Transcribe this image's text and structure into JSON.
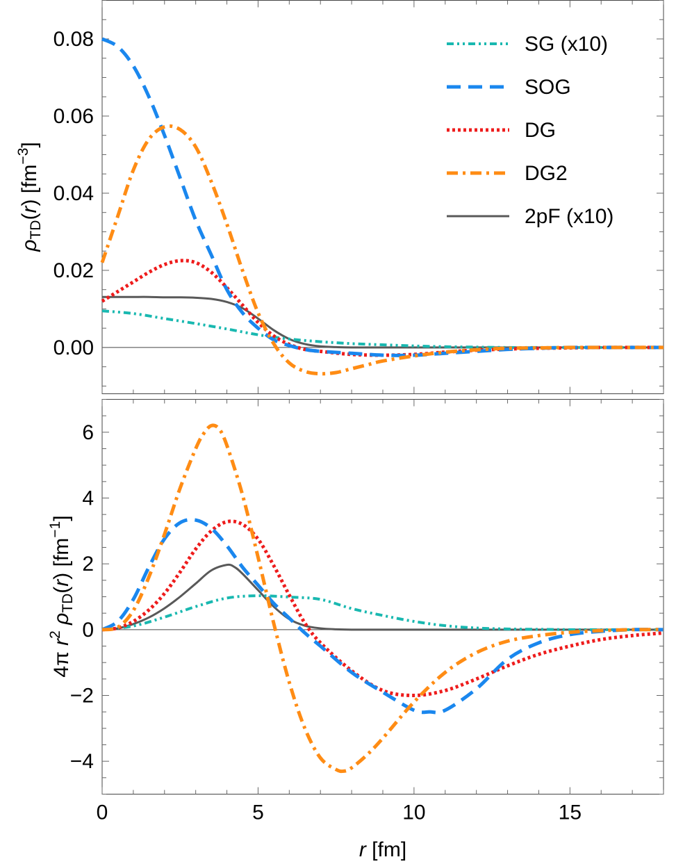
{
  "chart_data": [
    {
      "type": "line",
      "panel": "top",
      "ylabel_parts": {
        "rho": "ρ",
        "sub": "TD",
        "mid": "(",
        "r": "r",
        "close": ") [fm",
        "exp": "−3",
        "end": "]"
      },
      "xlim": [
        0,
        18
      ],
      "ylim": [
        -0.012,
        0.09
      ],
      "yticks": [
        0.0,
        0.02,
        0.04,
        0.06,
        0.08
      ],
      "ytick_labels": [
        "0.00",
        "0.02",
        "0.04",
        "0.06",
        "0.08"
      ],
      "xticks": [
        0,
        5,
        10,
        15
      ],
      "legend_position": "top-right",
      "series": [
        {
          "key": "SG",
          "name": "SG (x10)",
          "color": "#19b8b0",
          "x": [
            0,
            1,
            2,
            3,
            4,
            5,
            6,
            7,
            8,
            9,
            10,
            11,
            12,
            13,
            14,
            15,
            16,
            17,
            18
          ],
          "y": [
            0.0095,
            0.0088,
            0.0075,
            0.0062,
            0.0048,
            0.0033,
            0.0022,
            0.0015,
            0.001,
            0.0007,
            0.0004,
            0.0002,
            0.0001,
            0.0,
            0.0,
            0.0,
            0.0,
            0.0,
            0.0
          ]
        },
        {
          "key": "SOG",
          "name": "SOG",
          "color": "#1a87ee",
          "x": [
            0,
            0.5,
            1,
            1.5,
            2,
            2.5,
            3,
            3.5,
            4,
            4.5,
            5,
            5.5,
            6,
            6.5,
            7,
            8,
            9,
            10,
            11,
            12,
            13,
            14,
            15,
            16,
            17,
            18
          ],
          "y": [
            0.08,
            0.078,
            0.073,
            0.065,
            0.055,
            0.044,
            0.033,
            0.024,
            0.015,
            0.009,
            0.005,
            0.002,
            0.0005,
            -0.0005,
            -0.001,
            -0.0015,
            -0.002,
            -0.002,
            -0.0015,
            -0.001,
            -0.0005,
            -0.0002,
            0.0,
            0.0,
            0.0,
            0.0
          ]
        },
        {
          "key": "DG",
          "name": "DG",
          "color": "#ee1c1c",
          "x": [
            0,
            0.5,
            1,
            1.5,
            2,
            2.5,
            3,
            3.5,
            4,
            4.5,
            5,
            5.5,
            6,
            6.5,
            7,
            8,
            9,
            10,
            11,
            12,
            13,
            14,
            15,
            16,
            17,
            18
          ],
          "y": [
            0.012,
            0.0145,
            0.017,
            0.0195,
            0.0215,
            0.0225,
            0.022,
            0.0195,
            0.0155,
            0.011,
            0.0065,
            0.003,
            0.0008,
            -0.0005,
            -0.001,
            -0.0018,
            -0.002,
            -0.0018,
            -0.0012,
            -0.0007,
            -0.0004,
            -0.0002,
            -0.0001,
            0.0,
            0.0,
            0.0
          ]
        },
        {
          "key": "DG2",
          "name": "DG2",
          "color": "#ff8c14",
          "x": [
            0,
            0.5,
            1,
            1.5,
            2,
            2.5,
            3,
            3.5,
            4,
            4.5,
            5,
            5.5,
            6,
            6.5,
            7,
            7.5,
            8,
            8.5,
            9,
            10,
            11,
            12,
            13,
            14,
            15,
            16,
            17,
            18
          ],
          "y": [
            0.022,
            0.034,
            0.046,
            0.054,
            0.0572,
            0.0565,
            0.052,
            0.043,
            0.032,
            0.02,
            0.009,
            0.001,
            -0.004,
            -0.0062,
            -0.0068,
            -0.0065,
            -0.0055,
            -0.0045,
            -0.0035,
            -0.0022,
            -0.0012,
            -0.0006,
            -0.0002,
            -0.0001,
            0.0,
            0.0,
            0.0,
            0.0
          ]
        },
        {
          "key": "2pF",
          "name": "2pF (x10)",
          "color": "#595959",
          "x": [
            0,
            0.5,
            1,
            1.5,
            2,
            2.5,
            3,
            3.5,
            4,
            4.5,
            5,
            5.5,
            6,
            6.5,
            7,
            7.5,
            8,
            9,
            10,
            12,
            14,
            16,
            18
          ],
          "y": [
            0.0131,
            0.0131,
            0.0131,
            0.0131,
            0.013,
            0.013,
            0.0129,
            0.0126,
            0.0118,
            0.0102,
            0.0075,
            0.0045,
            0.0022,
            0.0009,
            0.0003,
            0.0001,
            0.0,
            0.0,
            0.0,
            0.0,
            0.0,
            0.0,
            0.0
          ]
        }
      ]
    },
    {
      "type": "line",
      "panel": "bottom",
      "ylabel_parts": {
        "pre": "4π ",
        "r": "r",
        "exp2": "2",
        "rho": " ρ",
        "sub": "TD",
        "mid": "(",
        "r2": "r",
        "close": ") [fm",
        "exp": "−1",
        "end": "]"
      },
      "xlabel_parts": {
        "r": "r",
        "unit": " [fm]"
      },
      "xlim": [
        0,
        18
      ],
      "ylim": [
        -5,
        7
      ],
      "yticks": [
        -4,
        -2,
        0,
        2,
        4,
        6
      ],
      "ytick_labels": [
        "−4",
        "−2",
        "0",
        "2",
        "4",
        "6"
      ],
      "xticks": [
        0,
        5,
        10,
        15
      ],
      "xtick_labels": [
        "0",
        "5",
        "10",
        "15"
      ],
      "series": [
        {
          "key": "SG",
          "name": "SG (x10)",
          "color": "#19b8b0",
          "x": [
            0,
            1,
            2,
            3,
            4,
            5,
            6,
            7,
            8,
            9,
            10,
            11,
            12,
            13,
            14,
            15,
            16,
            17,
            18
          ],
          "y": [
            0,
            0.11,
            0.38,
            0.7,
            0.96,
            1.03,
            0.99,
            0.92,
            0.64,
            0.43,
            0.25,
            0.12,
            0.05,
            0.02,
            0.01,
            0.0,
            0.0,
            0.0,
            0.0
          ]
        },
        {
          "key": "SOG",
          "name": "SOG",
          "color": "#1a87ee",
          "x": [
            0,
            0.5,
            1,
            1.5,
            2,
            2.5,
            3,
            3.5,
            4,
            4.5,
            5,
            5.5,
            6,
            6.5,
            7,
            8,
            9,
            10,
            10.5,
            11,
            12,
            13,
            14,
            15,
            16,
            17,
            18
          ],
          "y": [
            0,
            0.25,
            0.92,
            1.9,
            2.76,
            3.25,
            3.33,
            3.08,
            2.55,
            1.9,
            1.35,
            0.8,
            0.35,
            -0.1,
            -0.5,
            -1.3,
            -1.9,
            -2.45,
            -2.5,
            -2.45,
            -1.8,
            -0.9,
            -0.4,
            -0.15,
            -0.05,
            0.0,
            0.0
          ]
        },
        {
          "key": "DG",
          "name": "DG",
          "color": "#ee1c1c",
          "x": [
            0,
            0.5,
            1,
            1.5,
            2,
            2.5,
            3,
            3.5,
            4,
            4.5,
            5,
            5.5,
            6,
            6.5,
            7,
            8,
            9,
            10,
            11,
            12,
            13,
            14,
            15,
            16,
            17,
            18
          ],
          "y": [
            0,
            0.05,
            0.25,
            0.6,
            1.1,
            1.75,
            2.45,
            3.0,
            3.28,
            3.2,
            2.75,
            1.95,
            1.05,
            0.2,
            -0.4,
            -1.25,
            -1.85,
            -2.0,
            -1.85,
            -1.5,
            -1.1,
            -0.75,
            -0.5,
            -0.3,
            -0.18,
            -0.1
          ]
        },
        {
          "key": "DG2",
          "name": "DG2",
          "color": "#ff8c14",
          "x": [
            0,
            0.5,
            1,
            1.5,
            2,
            2.5,
            3,
            3.25,
            3.5,
            3.75,
            4,
            4.5,
            5,
            5.5,
            6,
            6.5,
            7,
            7.5,
            7.75,
            8,
            8.5,
            9,
            10,
            11,
            12,
            13,
            14,
            15,
            16,
            17,
            18
          ],
          "y": [
            0,
            0.07,
            0.58,
            1.6,
            2.9,
            4.3,
            5.5,
            5.95,
            6.2,
            6.1,
            5.6,
            4.1,
            2.2,
            0.2,
            -1.6,
            -3.0,
            -3.9,
            -4.25,
            -4.3,
            -4.2,
            -3.8,
            -3.3,
            -2.2,
            -1.3,
            -0.7,
            -0.35,
            -0.18,
            -0.08,
            -0.03,
            0.0,
            0.0
          ]
        },
        {
          "key": "2pF",
          "name": "2pF (x10)",
          "color": "#595959",
          "x": [
            0,
            0.5,
            1,
            1.5,
            2,
            2.5,
            3,
            3.5,
            4,
            4.25,
            4.5,
            5,
            5.5,
            6,
            6.5,
            7,
            7.5,
            8,
            9,
            10,
            12,
            14,
            16,
            18
          ],
          "y": [
            0,
            0.04,
            0.17,
            0.37,
            0.65,
            1.0,
            1.4,
            1.8,
            1.97,
            1.9,
            1.7,
            1.2,
            0.7,
            0.32,
            0.12,
            0.04,
            0.01,
            0.0,
            0.0,
            0.0,
            0.0,
            0.0,
            0.0,
            0.0
          ]
        }
      ]
    }
  ]
}
